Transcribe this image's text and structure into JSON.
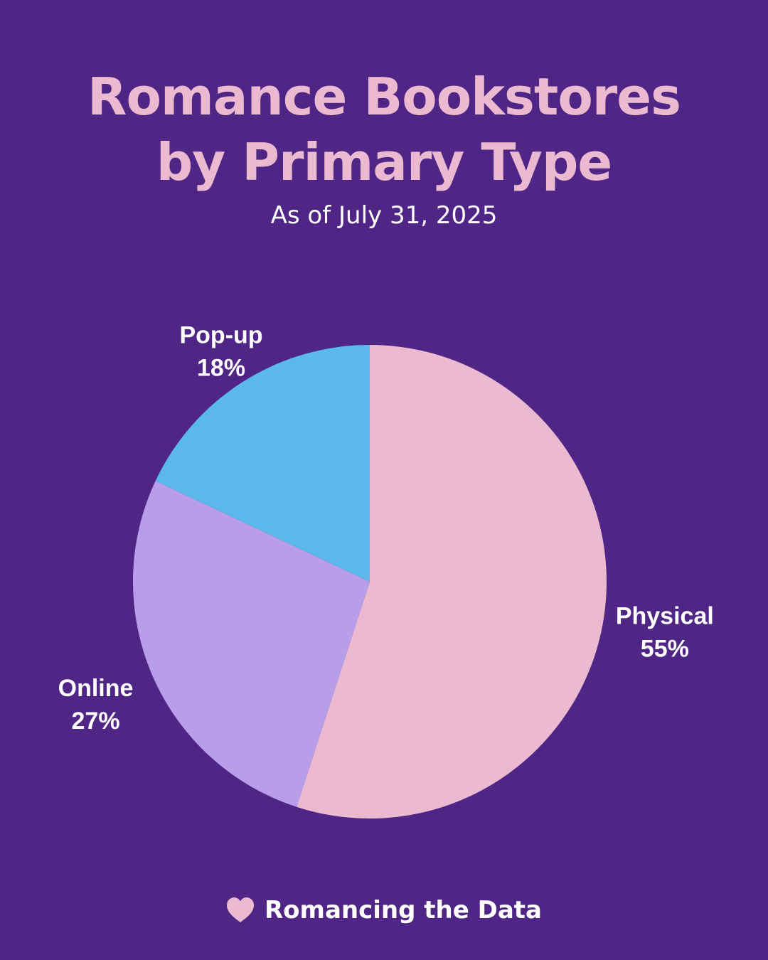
{
  "colors": {
    "background": "#4f2585",
    "title": "#ebbad0",
    "text": "#ffffff",
    "heart": "#ebbad0"
  },
  "footer": {
    "icon": "heart-icon",
    "text": "Romancing the Data"
  },
  "chart_data": {
    "type": "pie",
    "title": "Romance Bookstores by Primary Type",
    "subtitle": "As of July 31, 2025",
    "slices": [
      {
        "label": "Physical",
        "value": 55,
        "display": "55%",
        "color": "#ebbad0"
      },
      {
        "label": "Online",
        "value": 27,
        "display": "27%",
        "color": "#b89de8"
      },
      {
        "label": "Pop-up",
        "value": 18,
        "display": "18%",
        "color": "#5bb8ea"
      }
    ],
    "start": "top (12 o'clock), clockwise",
    "legend": "none (labels beside slices)"
  }
}
